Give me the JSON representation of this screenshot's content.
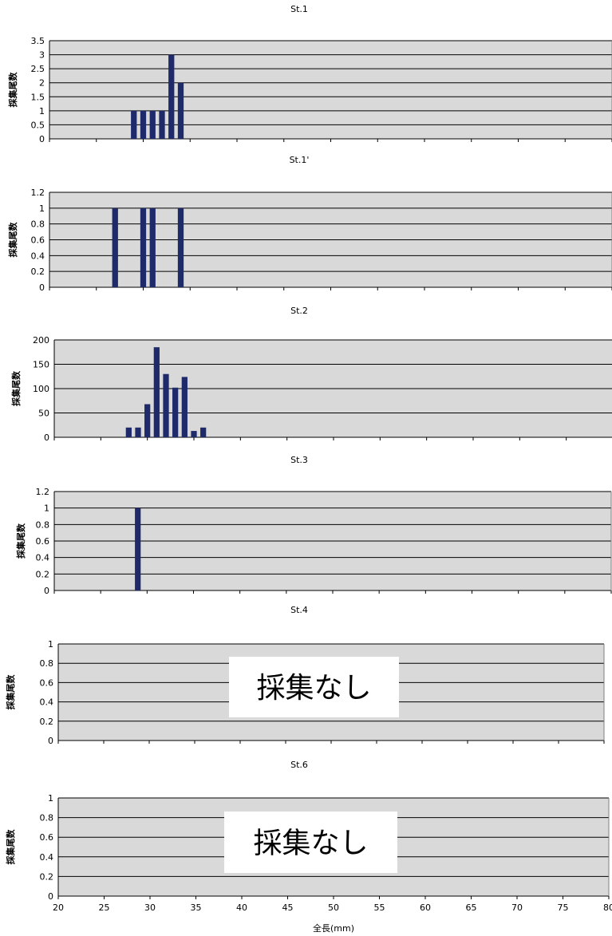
{
  "colors": {
    "bar": "#1F2A6B",
    "plot_bg": "#D9D9D9",
    "grid": "#000000",
    "note_bg": "#FFFFFF"
  },
  "xaxis": {
    "label": "全長(mm)",
    "ticks": [
      "20",
      "25",
      "30",
      "35",
      "40",
      "45",
      "50",
      "55",
      "60",
      "65",
      "70",
      "75",
      "80"
    ],
    "xlim": [
      20,
      80
    ]
  },
  "chart_data": [
    {
      "type": "bar",
      "title": "St.1",
      "ylabel": "採集尾数",
      "ylim": [
        0,
        3.5
      ],
      "yticks": [
        "0",
        "0.5",
        "1",
        "1.5",
        "2",
        "2.5",
        "3",
        "3.5"
      ],
      "x": [
        29,
        30,
        31,
        32,
        33,
        34
      ],
      "values": [
        1,
        1,
        1,
        1,
        3,
        2
      ],
      "note": ""
    },
    {
      "type": "bar",
      "title": "St.1'",
      "ylabel": "採集尾数",
      "ylim": [
        0,
        1.2
      ],
      "yticks": [
        "0",
        "0.2",
        "0.4",
        "0.6",
        "0.8",
        "1",
        "1.2"
      ],
      "x": [
        27,
        30,
        31,
        34
      ],
      "values": [
        1,
        1,
        1,
        1
      ],
      "note": ""
    },
    {
      "type": "bar",
      "title": "St.2",
      "ylabel": "採集尾数",
      "ylim": [
        0,
        200
      ],
      "yticks": [
        "0",
        "50",
        "100",
        "150",
        "200"
      ],
      "x": [
        28,
        29,
        30,
        31,
        32,
        33,
        34,
        35,
        36
      ],
      "values": [
        20,
        20,
        68,
        185,
        130,
        102,
        124,
        13,
        20
      ],
      "note": ""
    },
    {
      "type": "bar",
      "title": "St.3",
      "ylabel": "採集尾数",
      "ylim": [
        0,
        1.2
      ],
      "yticks": [
        "0",
        "0.2",
        "0.4",
        "0.6",
        "0.8",
        "1",
        "1.2"
      ],
      "x": [
        29
      ],
      "values": [
        1
      ],
      "note": ""
    },
    {
      "type": "bar",
      "title": "St.4",
      "ylabel": "採集尾数",
      "ylim": [
        0,
        1
      ],
      "yticks": [
        "0",
        "0.2",
        "0.4",
        "0.6",
        "0.8",
        "1"
      ],
      "x": [],
      "values": [],
      "note": "採集なし"
    },
    {
      "type": "bar",
      "title": "St.6",
      "ylabel": "採集尾数",
      "ylim": [
        0,
        1
      ],
      "yticks": [
        "0",
        "0.2",
        "0.4",
        "0.6",
        "0.8",
        "1"
      ],
      "x": [],
      "values": [],
      "note": "採集なし"
    }
  ]
}
